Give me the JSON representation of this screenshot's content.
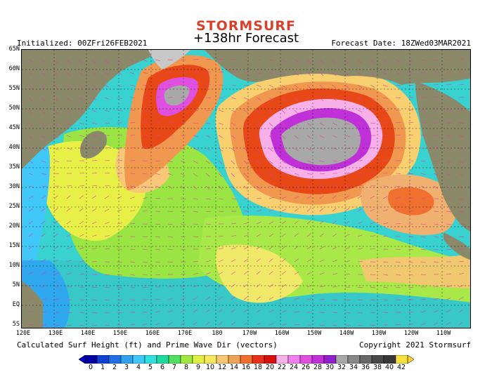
{
  "header": {
    "brand": "STORMSURF",
    "title": "+138hr Forecast",
    "initialized": "Initialized: 00ZFri26FEB2021",
    "forecast_date": "Forecast Date: 18ZWed03MAR2021"
  },
  "footer": {
    "caption": "Calculated Surf Height (ft) and Prime Wave Dir (vectors)",
    "copyright": "Copyright 2021 Stormsurf"
  },
  "map": {
    "lat_labels": [
      "65N",
      "60N",
      "55N",
      "50N",
      "45N",
      "40N",
      "35N",
      "30N",
      "25N",
      "20N",
      "15N",
      "10N",
      "5N",
      "EQ",
      "5S"
    ],
    "lon_labels": [
      "120E",
      "130E",
      "140E",
      "150E",
      "160E",
      "170E",
      "180",
      "170W",
      "160W",
      "150W",
      "140W",
      "130W",
      "120W",
      "110W"
    ],
    "land_color": "#8a8a6a",
    "ice_color": "#c8c8c8"
  },
  "legend": {
    "labels": [
      "0",
      "1",
      "2",
      "3",
      "4",
      "5",
      "6",
      "7",
      "8",
      "9",
      "10",
      "12",
      "14",
      "16",
      "18",
      "20",
      "22",
      "24",
      "26",
      "28",
      "30",
      "32",
      "34",
      "36",
      "38",
      "40",
      "42"
    ],
    "colors": [
      "#0000a0",
      "#1040d0",
      "#2070e8",
      "#30a0f0",
      "#40c8f8",
      "#30e0e0",
      "#20d8a0",
      "#50e060",
      "#a0e840",
      "#e0f040",
      "#f8e860",
      "#f8c870",
      "#f0a058",
      "#f07030",
      "#e83018",
      "#d81010",
      "#f8b0e8",
      "#f080f0",
      "#e050e0",
      "#c030d8",
      "#9020c8",
      "#a8a8a8",
      "#888888",
      "#686868",
      "#484848",
      "#383838",
      "#f8e040"
    ],
    "low_arrow_color": "#0000c0",
    "high_arrow_color": "#f8d030"
  }
}
